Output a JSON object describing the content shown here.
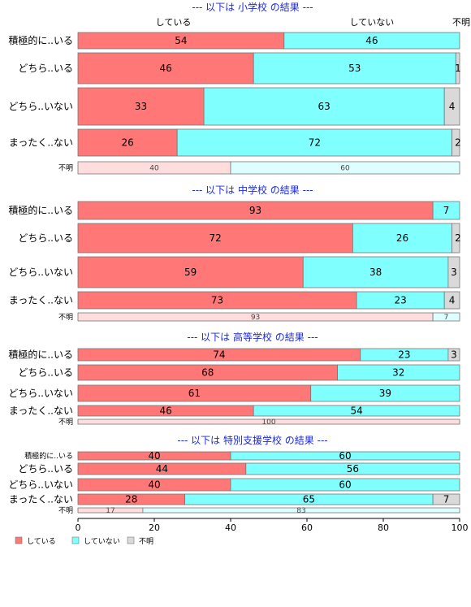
{
  "chart_data": {
    "type": "bar",
    "orientation": "horizontal",
    "stacked": true,
    "xlim": [
      0,
      100
    ],
    "xticks": [
      0,
      20,
      40,
      60,
      80,
      100
    ],
    "header_labels": [
      "している",
      "していない",
      "不明"
    ],
    "colors": {
      "している": "#ff7777",
      "していない": "#80ffff",
      "不明": "#d9d9d9",
      "unknown_している": "#ffdddd",
      "unknown_していない": "#ddffff"
    },
    "legend": {
      "position": "bottom-left",
      "entries": [
        "している",
        "していない",
        "不明"
      ]
    },
    "panels": [
      {
        "title": "--- 以下は 小学校 の結果 ---",
        "categories": [
          "積極的に..いる",
          "どちら..いる",
          "どちら..いない",
          "まったく..ない",
          "不明"
        ],
        "series": [
          {
            "name": "している",
            "values": [
              54,
              46,
              33,
              26,
              40
            ]
          },
          {
            "name": "していない",
            "values": [
              46,
              53,
              63,
              72,
              60
            ]
          },
          {
            "name": "不明",
            "values": [
              0,
              1,
              4,
              2,
              0
            ]
          }
        ]
      },
      {
        "title": "--- 以下は 中学校 の結果 ---",
        "categories": [
          "積極的に..いる",
          "どちら..いる",
          "どちら..いない",
          "まったく..ない",
          "不明"
        ],
        "series": [
          {
            "name": "している",
            "values": [
              93,
              72,
              59,
              73,
              93
            ]
          },
          {
            "name": "していない",
            "values": [
              7,
              26,
              38,
              23,
              7
            ]
          },
          {
            "name": "不明",
            "values": [
              0,
              2,
              3,
              4,
              0
            ]
          }
        ]
      },
      {
        "title": "--- 以下は 高等学校 の結果 ---",
        "categories": [
          "積極的に..いる",
          "どちら..いる",
          "どちら..いない",
          "まったく..ない",
          "不明"
        ],
        "series": [
          {
            "name": "している",
            "values": [
              74,
              68,
              61,
              46,
              100
            ]
          },
          {
            "name": "していない",
            "values": [
              23,
              32,
              39,
              54,
              0
            ]
          },
          {
            "name": "不明",
            "values": [
              3,
              0,
              0,
              0,
              0
            ]
          }
        ]
      },
      {
        "title": "--- 以下は 特別支援学校 の結果 ---",
        "categories": [
          "積極的に..いる",
          "どちら..いる",
          "どちら..いない",
          "まったく..ない",
          "不明"
        ],
        "series": [
          {
            "name": "している",
            "values": [
              40,
              44,
              40,
              28,
              17
            ]
          },
          {
            "name": "していない",
            "values": [
              60,
              56,
              60,
              65,
              83
            ]
          },
          {
            "name": "不明",
            "values": [
              0,
              0,
              0,
              7,
              0
            ]
          }
        ]
      }
    ]
  }
}
